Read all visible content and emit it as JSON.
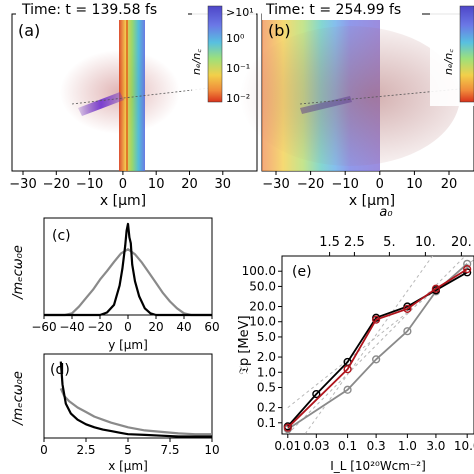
{
  "figure": {
    "panel_a": {
      "label": "(a)",
      "time_text": "Time: t = 139.58 fs",
      "xlabel": "x [μm]",
      "xticks": [
        "−30",
        "−20",
        "−10",
        "0",
        "10",
        "20",
        "30"
      ],
      "colorbar_label": "nₑ/n꜀",
      "colorbar_ticks": [
        ">10¹",
        "10⁰",
        "10⁻¹",
        "10⁻²"
      ]
    },
    "panel_b": {
      "label": "(b)",
      "time_text": "Time: t = 254.99 fs",
      "xlabel": "x [μm]",
      "xticks": [
        "−30",
        "−20",
        "−10",
        "0",
        "10",
        "20"
      ],
      "colorbar_label": "nₑ/n꜀"
    },
    "panel_c": {
      "label": "(c)",
      "ylabel": "/mₑcω₀e"
    },
    "panel_d": {
      "label": "(d)",
      "ylabel": "/mₑcω₀e"
    },
    "panel_e": {
      "label": "(e)",
      "top_axis_label": "a₀"
    },
    "colors": {
      "gray": "#8a8a8a",
      "black": "#000000",
      "red": "#b0141c",
      "dashed": "#b8b8b8"
    }
  },
  "chart_data": [
    {
      "type": "line",
      "panel": "(c)",
      "xlabel": "y [μm]",
      "ylabel": "/mₑcω₀e",
      "xlim": [
        -60,
        60
      ],
      "xticks": [
        -60,
        -40,
        -20,
        0,
        20,
        40,
        60
      ],
      "ylim": [
        0,
        1.15
      ],
      "series": [
        {
          "color": "gray",
          "x": [
            -60,
            -45,
            -40,
            -35,
            -30,
            -25,
            -20,
            -15,
            -10,
            -5,
            0,
            5,
            10,
            15,
            20,
            25,
            30,
            35,
            40,
            45,
            60
          ],
          "y": [
            0,
            0,
            0.02,
            0.1,
            0.2,
            0.3,
            0.42,
            0.52,
            0.63,
            0.73,
            0.78,
            0.72,
            0.62,
            0.5,
            0.38,
            0.26,
            0.16,
            0.08,
            0.02,
            0,
            0
          ]
        },
        {
          "color": "black",
          "x": [
            -60,
            -20,
            -15,
            -10,
            -6,
            -4,
            -2,
            -1,
            0,
            1,
            2,
            3,
            5,
            8,
            12,
            16,
            20,
            60
          ],
          "y": [
            0,
            0,
            0.03,
            0.12,
            0.35,
            0.55,
            0.82,
            1.0,
            1.08,
            0.92,
            0.85,
            0.6,
            0.4,
            0.22,
            0.08,
            0.02,
            0,
            0
          ]
        }
      ]
    },
    {
      "type": "line",
      "panel": "(d)",
      "xlabel": "x [μm]",
      "ylabel": "/mₑcω₀e",
      "xlim": [
        0,
        10
      ],
      "xticks": [
        "0",
        "2.5",
        "5",
        "7.5",
        "10"
      ],
      "ylim": [
        0,
        1.1
      ],
      "series": [
        {
          "color": "gray",
          "x": [
            1,
            1.2,
            1.5,
            2,
            2.5,
            3,
            3.5,
            4,
            5,
            6,
            7,
            8,
            9,
            10
          ],
          "y": [
            0.65,
            0.55,
            0.48,
            0.4,
            0.34,
            0.28,
            0.24,
            0.2,
            0.14,
            0.1,
            0.08,
            0.06,
            0.05,
            0.05
          ]
        },
        {
          "color": "black",
          "x": [
            1,
            1.1,
            1.3,
            1.6,
            2,
            2.5,
            3,
            3.5,
            4,
            4.5,
            5,
            6,
            7,
            8,
            10
          ],
          "y": [
            1.0,
            0.7,
            0.45,
            0.32,
            0.24,
            0.18,
            0.14,
            0.11,
            0.09,
            0.07,
            0.05,
            0.04,
            0.03,
            0.02,
            0.02
          ]
        }
      ]
    },
    {
      "type": "line",
      "panel": "(e)",
      "xscale": "log",
      "yscale": "log",
      "xlabel": "I_L [10²⁰Wcm⁻²]",
      "ylabel": "𝔗p [MeV]",
      "top_axis_label": "a₀",
      "top_ticks": [
        "1.5",
        "2.5",
        "5.",
        "10.",
        "20."
      ],
      "top_tick_x": [
        0.05,
        0.13,
        0.5,
        2.0,
        8.0
      ],
      "xticks": [
        "0.01",
        "0.03",
        "0.1",
        "0.3",
        "1.0",
        "3.0",
        "10.0"
      ],
      "xtick_values": [
        0.01,
        0.03,
        0.1,
        0.3,
        1.0,
        3.0,
        10.0
      ],
      "yticks": [
        "0.1",
        "0.2",
        "0.5",
        "1.0",
        "2.0",
        "5.0",
        "10.0",
        "20.0",
        "50.0",
        "100.0"
      ],
      "ytick_values": [
        0.1,
        0.2,
        0.5,
        1.0,
        2.0,
        5.0,
        10.0,
        20.0,
        50.0,
        100.0
      ],
      "xlim": [
        0.008,
        13
      ],
      "ylim": [
        0.06,
        200
      ],
      "series": [
        {
          "color": "gray",
          "x": [
            0.01,
            0.1,
            0.3,
            1.0,
            3.0,
            10.0
          ],
          "y": [
            0.075,
            0.45,
            1.8,
            6.5,
            40,
            140
          ]
        },
        {
          "color": "black",
          "x": [
            0.01,
            0.03,
            0.1,
            0.3,
            1.0,
            3.0,
            10.0
          ],
          "y": [
            0.085,
            0.37,
            1.6,
            12,
            20,
            42,
            95
          ]
        },
        {
          "color": "red",
          "x": [
            0.01,
            0.1,
            0.3,
            1.0,
            3.0,
            10.0
          ],
          "y": [
            0.08,
            1.15,
            11,
            18,
            45,
            110
          ]
        }
      ]
    }
  ]
}
